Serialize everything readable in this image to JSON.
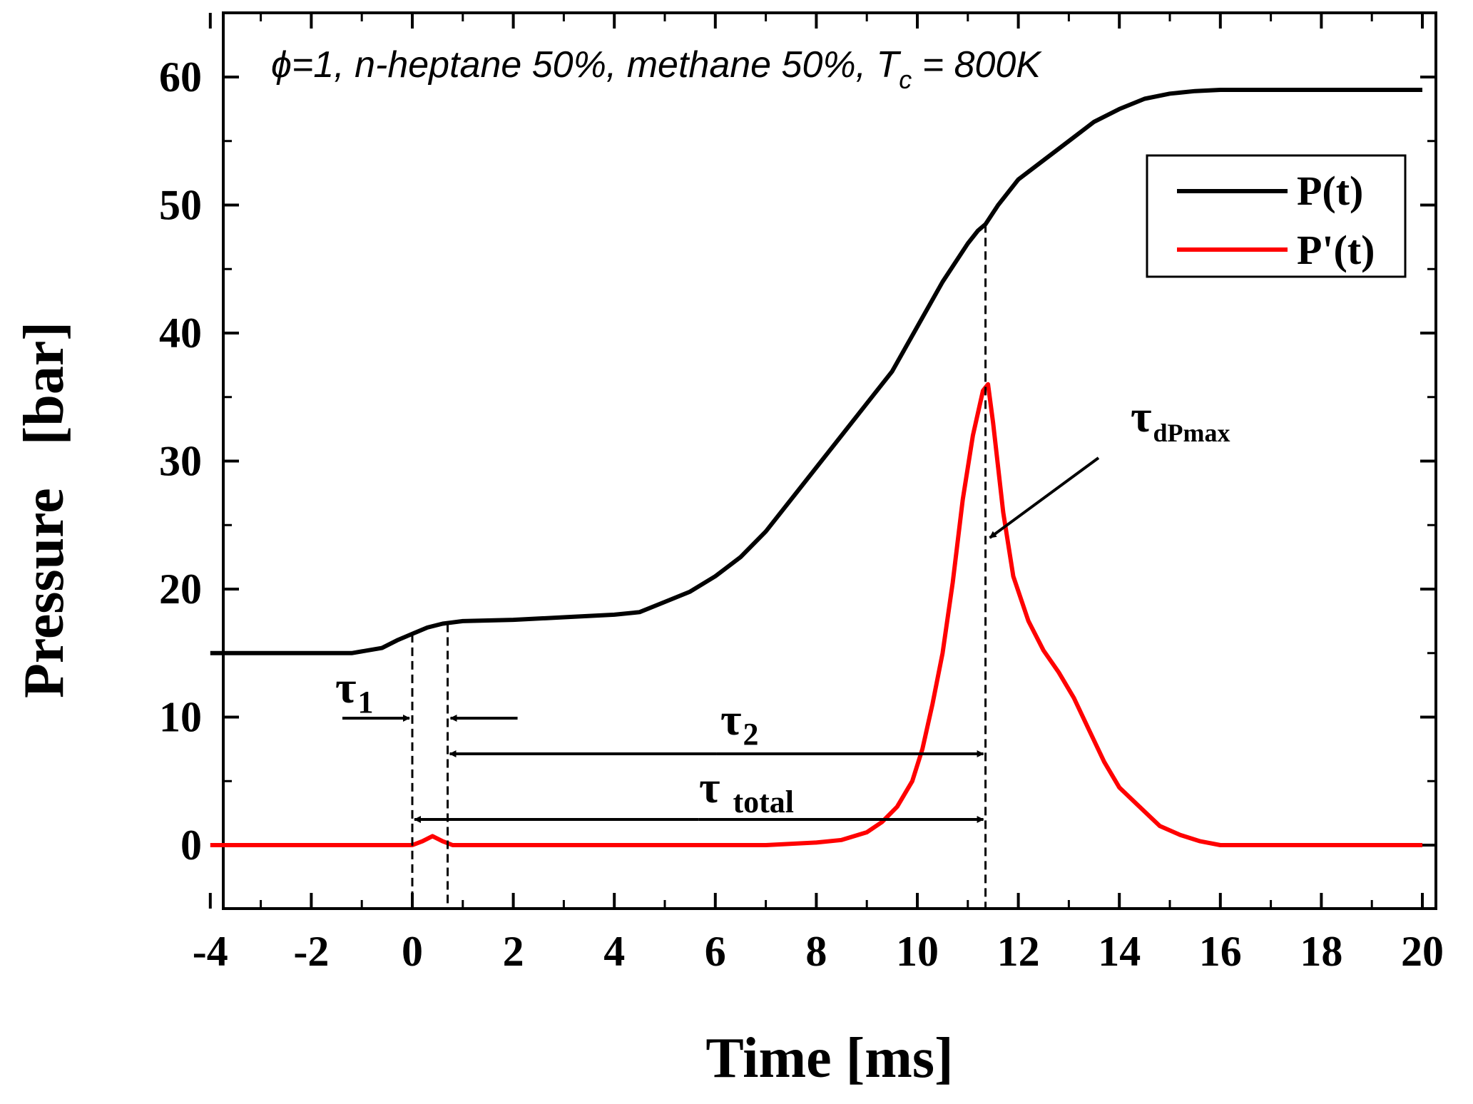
{
  "chart_data": {
    "type": "line",
    "title": "ϕ=1, n-heptane 50%, methane 50%, T",
    "title_sub": "c",
    "title_tail": " = 800K",
    "xlabel": "Time [ms]",
    "ylabel": "Pressure   [bar]",
    "xlim": [
      -4,
      20
    ],
    "ylim": [
      -5,
      65
    ],
    "xticks": [
      -4,
      -2,
      0,
      2,
      4,
      6,
      8,
      10,
      12,
      14,
      16,
      18,
      20
    ],
    "xtick_labels": [
      "-4",
      "-2",
      "0",
      "2",
      "4",
      "6",
      "8",
      "10",
      "12",
      "14",
      "16",
      "18",
      "20"
    ],
    "yticks": [
      0,
      10,
      20,
      30,
      40,
      50,
      60
    ],
    "ytick_labels": [
      "0",
      "10",
      "20",
      "30",
      "40",
      "50",
      "60"
    ],
    "legend": {
      "position": "top-right"
    },
    "series": [
      {
        "name": "P(t)",
        "color": "#000000",
        "x": [
          -4,
          -1.2,
          -0.6,
          -0.3,
          0,
          0.3,
          0.6,
          1,
          2,
          3,
          4,
          4.5,
          5,
          5.5,
          6,
          6.5,
          7,
          7.5,
          8,
          8.5,
          9,
          9.5,
          10,
          10.5,
          11,
          11.2,
          11.35,
          11.6,
          12,
          12.5,
          13,
          13.5,
          14,
          14.5,
          15,
          15.5,
          16,
          18,
          20
        ],
        "values": [
          15,
          15,
          15.4,
          16,
          16.5,
          17,
          17.3,
          17.5,
          17.6,
          17.8,
          18,
          18.2,
          19,
          19.8,
          21,
          22.5,
          24.5,
          27,
          29.5,
          32,
          34.5,
          37,
          40.5,
          44,
          47,
          48,
          48.5,
          50,
          52,
          53.5,
          55,
          56.5,
          57.5,
          58.3,
          58.7,
          58.9,
          59,
          59,
          59
        ]
      },
      {
        "name": "P'(t)",
        "color": "#ff0000",
        "x": [
          -4,
          0,
          0.2,
          0.4,
          0.6,
          0.8,
          4,
          7,
          8,
          8.5,
          9,
          9.3,
          9.6,
          9.9,
          10.1,
          10.3,
          10.5,
          10.7,
          10.9,
          11.1,
          11.3,
          11.4,
          11.5,
          11.7,
          11.9,
          12.2,
          12.5,
          12.8,
          13.1,
          13.4,
          13.7,
          14,
          14.4,
          14.8,
          15.2,
          15.6,
          16,
          20
        ],
        "values": [
          0,
          0,
          0.3,
          0.7,
          0.3,
          0,
          0,
          0,
          0.2,
          0.4,
          1,
          1.8,
          3,
          5,
          7.5,
          11,
          15,
          20.5,
          27,
          32,
          35.5,
          36,
          33,
          26,
          21,
          17.5,
          15.2,
          13.5,
          11.5,
          9,
          6.5,
          4.5,
          3,
          1.5,
          0.8,
          0.3,
          0,
          0
        ]
      }
    ],
    "annotations": {
      "tau1": {
        "label": "τ",
        "sub": "1",
        "x_start": 0,
        "x_end": 0.7
      },
      "tau2": {
        "label": "τ",
        "sub": "2",
        "x_start": 0.7,
        "x_end": 11.35
      },
      "tau_total": {
        "label": "τ",
        "sub": "total",
        "x_start": 0,
        "x_end": 11.35
      },
      "tau_dPmax": {
        "label": "τ",
        "sub": "dPmax",
        "x": 11.35
      }
    }
  }
}
